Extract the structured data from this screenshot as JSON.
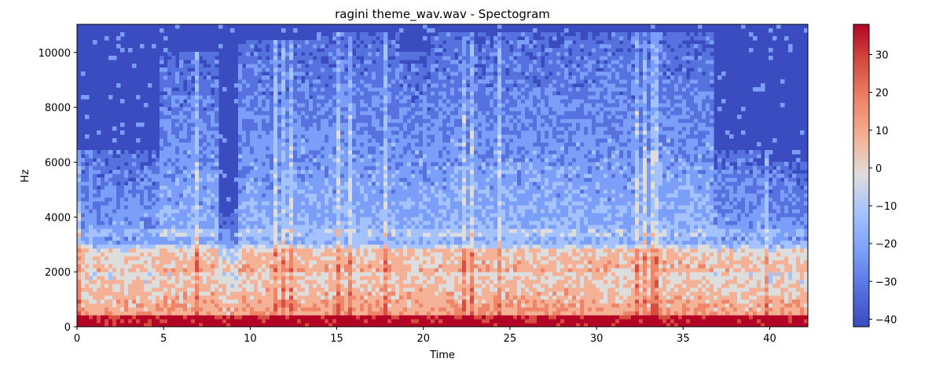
{
  "chart_data": {
    "type": "heatmap",
    "title": "ragini theme_wav.wav - Spectogram",
    "xlabel": "Time",
    "ylabel": "Hz",
    "xlim": [
      0,
      42.2
    ],
    "ylim": [
      0,
      11025
    ],
    "x_ticks": [
      0,
      5,
      10,
      15,
      20,
      25,
      30,
      35,
      40
    ],
    "y_ticks": [
      0,
      2000,
      4000,
      6000,
      8000,
      10000
    ],
    "grid": false,
    "colormap": "coolwarm",
    "colorbar": {
      "range": [
        -42,
        38
      ],
      "ticks": [
        30,
        20,
        10,
        0,
        -10,
        -20,
        -30,
        -40
      ],
      "tick_labels": [
        "30",
        "20",
        "10",
        "0",
        "−10",
        "−20",
        "−30",
        "−40"
      ]
    },
    "colors": {
      "low": "#3b4cc0",
      "mid": "#dddddd",
      "high": "#b40426"
    },
    "segments": [
      {
        "start": 0.0,
        "end": 4.7,
        "top_hz": 6500,
        "character": "dense harmonics, strong 2000-3000 Hz band"
      },
      {
        "start": 4.7,
        "end": 8.2,
        "top_hz": 10000,
        "character": "bright upper patches 6000-9000 Hz"
      },
      {
        "start": 8.2,
        "end": 9.2,
        "top_hz": 4200,
        "character": "quieter"
      },
      {
        "start": 9.2,
        "end": 13.8,
        "top_hz": 10500,
        "character": "decaying harmonics"
      },
      {
        "start": 13.8,
        "end": 18.5,
        "top_hz": 10800,
        "character": "dense harmonics, 3400 Hz line"
      },
      {
        "start": 18.5,
        "end": 20.5,
        "top_hz": 10000,
        "character": "broadband"
      },
      {
        "start": 20.5,
        "end": 27.6,
        "top_hz": 10800,
        "character": "dense vertical onsets"
      },
      {
        "start": 27.6,
        "end": 30.0,
        "top_hz": 10800,
        "character": "broadband"
      },
      {
        "start": 30.0,
        "end": 36.8,
        "top_hz": 10800,
        "character": "dense harmonics, 3400 Hz line"
      },
      {
        "start": 36.8,
        "end": 40.0,
        "top_hz": 6500,
        "character": "decay"
      },
      {
        "start": 40.0,
        "end": 42.2,
        "top_hz": 6000,
        "character": "fading harmonics"
      }
    ]
  }
}
